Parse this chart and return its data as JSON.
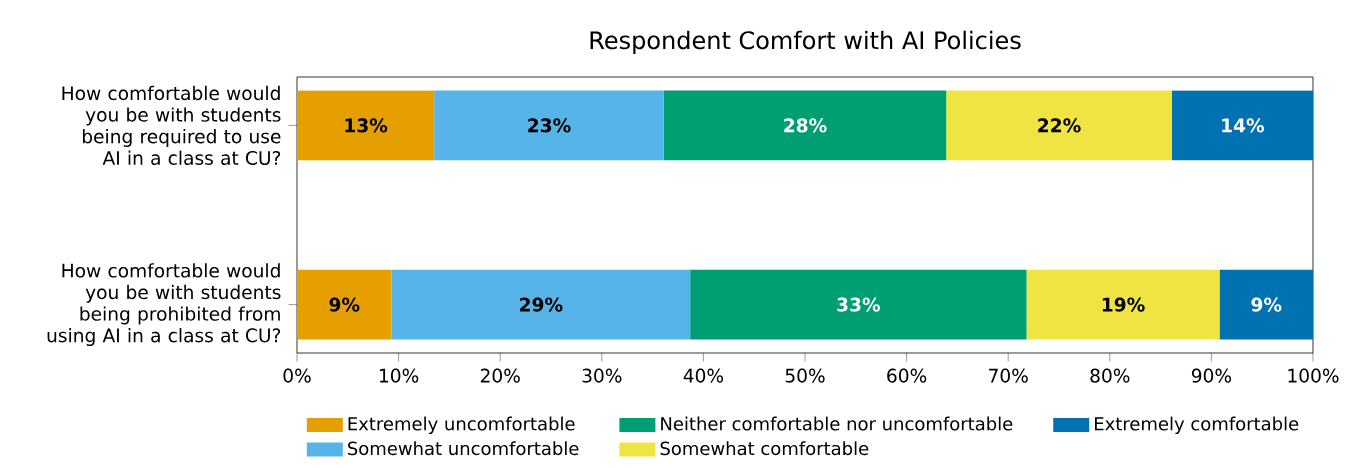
{
  "chart_data": {
    "type": "bar",
    "orientation": "horizontal",
    "stacked": true,
    "title": "Respondent Comfort with AI Policies",
    "categories": [
      "How comfortable would you be with students being required to use AI in a class at CU?",
      "How comfortable would you be with students being prohibited from using AI in a class at CU?"
    ],
    "series": [
      {
        "name": "Extremely uncomfortable",
        "color": "#e69f00",
        "values": [
          13.5,
          9.3
        ],
        "value_labels": [
          "13%",
          "9%"
        ]
      },
      {
        "name": "Somewhat uncomfortable",
        "color": "#56b4e9",
        "values": [
          22.6,
          29.4
        ],
        "value_labels": [
          "23%",
          "29%"
        ]
      },
      {
        "name": "Neither comfortable nor uncomfortable",
        "color": "#009e73",
        "values": [
          27.8,
          33.1
        ],
        "value_labels": [
          "28%",
          "33%"
        ]
      },
      {
        "name": "Somewhat comfortable",
        "color": "#f0e442",
        "values": [
          22.2,
          19.0
        ],
        "value_labels": [
          "22%",
          "19%"
        ]
      },
      {
        "name": "Extremely comfortable",
        "color": "#0072b2",
        "values": [
          13.9,
          9.2
        ],
        "value_labels": [
          "14%",
          "9%"
        ]
      }
    ],
    "xlim": [
      0,
      100
    ],
    "xticks": [
      {
        "value": 0,
        "label": "0%"
      },
      {
        "value": 10,
        "label": "10%"
      },
      {
        "value": 20,
        "label": "20%"
      },
      {
        "value": 30,
        "label": "30%"
      },
      {
        "value": 40,
        "label": "40%"
      },
      {
        "value": 50,
        "label": "50%"
      },
      {
        "value": 60,
        "label": "60%"
      },
      {
        "value": 70,
        "label": "70%"
      },
      {
        "value": 80,
        "label": "80%"
      },
      {
        "value": 90,
        "label": "90%"
      },
      {
        "value": 100,
        "label": "100%"
      }
    ],
    "legend": "bottom"
  }
}
